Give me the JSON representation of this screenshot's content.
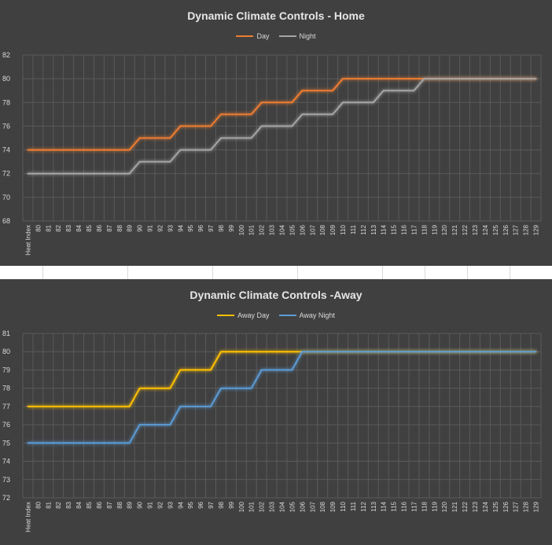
{
  "chart_data": [
    {
      "type": "line",
      "title": "Dynamic Climate Controls - Home",
      "x_first_label": "Heat Index",
      "categories": [
        "Heat Index",
        "80",
        "81",
        "82",
        "83",
        "84",
        "85",
        "86",
        "87",
        "88",
        "89",
        "90",
        "91",
        "92",
        "93",
        "94",
        "95",
        "96",
        "97",
        "98",
        "99",
        "100",
        "101",
        "102",
        "103",
        "104",
        "105",
        "106",
        "107",
        "108",
        "109",
        "110",
        "111",
        "112",
        "113",
        "114",
        "115",
        "116",
        "117",
        "118",
        "119",
        "120",
        "121",
        "122",
        "123",
        "124",
        "125",
        "126",
        "127",
        "128",
        "129"
      ],
      "ylim": [
        68,
        82
      ],
      "yticks": [
        68,
        70,
        72,
        74,
        76,
        78,
        80,
        82
      ],
      "grid": true,
      "legend_position": "top",
      "series": [
        {
          "name": "Day",
          "color": "#ed7d31",
          "values": [
            74,
            74,
            74,
            74,
            74,
            74,
            74,
            74,
            74,
            74,
            74,
            75,
            75,
            75,
            75,
            76,
            76,
            76,
            76,
            77,
            77,
            77,
            77,
            78,
            78,
            78,
            78,
            79,
            79,
            79,
            79,
            80,
            80,
            80,
            80,
            80,
            80,
            80,
            80,
            80,
            80,
            80,
            80,
            80,
            80,
            80,
            80,
            80,
            80,
            80,
            80
          ]
        },
        {
          "name": "Night",
          "color": "#a5a5a5",
          "values": [
            72,
            72,
            72,
            72,
            72,
            72,
            72,
            72,
            72,
            72,
            72,
            73,
            73,
            73,
            73,
            74,
            74,
            74,
            74,
            75,
            75,
            75,
            75,
            76,
            76,
            76,
            76,
            77,
            77,
            77,
            77,
            78,
            78,
            78,
            78,
            79,
            79,
            79,
            79,
            80,
            80,
            80,
            80,
            80,
            80,
            80,
            80,
            80,
            80,
            80,
            80
          ]
        }
      ]
    },
    {
      "type": "line",
      "title": "Dynamic Climate Controls -Away",
      "x_first_label": "Heat Index",
      "categories": [
        "Heat Index",
        "80",
        "81",
        "82",
        "83",
        "84",
        "85",
        "86",
        "87",
        "88",
        "89",
        "90",
        "91",
        "92",
        "93",
        "94",
        "95",
        "96",
        "97",
        "98",
        "99",
        "100",
        "101",
        "102",
        "103",
        "104",
        "105",
        "106",
        "107",
        "108",
        "109",
        "110",
        "111",
        "112",
        "113",
        "114",
        "115",
        "116",
        "117",
        "118",
        "119",
        "120",
        "121",
        "122",
        "123",
        "124",
        "125",
        "126",
        "127",
        "128",
        "129"
      ],
      "ylim": [
        72,
        81
      ],
      "yticks": [
        72,
        73,
        74,
        75,
        76,
        77,
        78,
        79,
        80,
        81
      ],
      "grid": true,
      "legend_position": "top",
      "series": [
        {
          "name": "Away Day",
          "color": "#ffc000",
          "values": [
            77,
            77,
            77,
            77,
            77,
            77,
            77,
            77,
            77,
            77,
            77,
            78,
            78,
            78,
            78,
            79,
            79,
            79,
            79,
            80,
            80,
            80,
            80,
            80,
            80,
            80,
            80,
            80,
            80,
            80,
            80,
            80,
            80,
            80,
            80,
            80,
            80,
            80,
            80,
            80,
            80,
            80,
            80,
            80,
            80,
            80,
            80,
            80,
            80,
            80,
            80
          ]
        },
        {
          "name": "Away Night",
          "color": "#5b9bd5",
          "values": [
            75,
            75,
            75,
            75,
            75,
            75,
            75,
            75,
            75,
            75,
            75,
            76,
            76,
            76,
            76,
            77,
            77,
            77,
            77,
            78,
            78,
            78,
            78,
            79,
            79,
            79,
            79,
            80,
            80,
            80,
            80,
            80,
            80,
            80,
            80,
            80,
            80,
            80,
            80,
            80,
            80,
            80,
            80,
            80,
            80,
            80,
            80,
            80,
            80,
            80,
            80
          ]
        }
      ]
    }
  ]
}
